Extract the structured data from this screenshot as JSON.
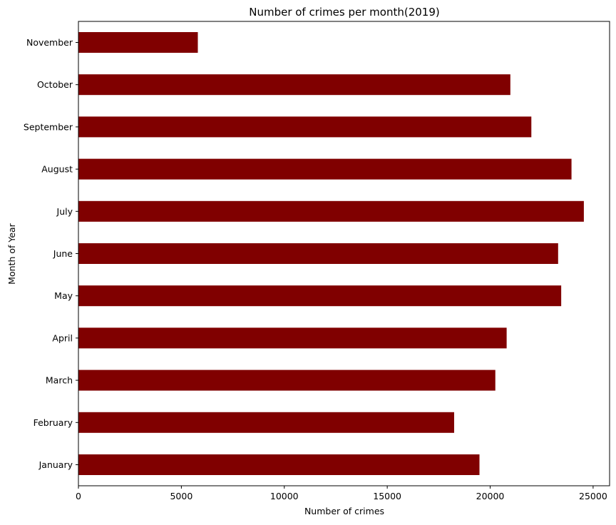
{
  "chart_data": {
    "type": "bar",
    "orientation": "horizontal",
    "title": "Number of crimes per month(2019)",
    "xlabel": "Number of crimes",
    "ylabel": "Month of Year",
    "categories": [
      "January",
      "February",
      "March",
      "April",
      "May",
      "June",
      "July",
      "August",
      "September",
      "October",
      "November"
    ],
    "values": [
      19480,
      18250,
      20250,
      20800,
      23450,
      23300,
      24550,
      23950,
      22000,
      20980,
      5800
    ],
    "xlim": [
      0,
      25800
    ],
    "xticks": [
      0,
      5000,
      10000,
      15000,
      20000,
      25000
    ],
    "xtick_labels": [
      "0",
      "5000",
      "10000",
      "15000",
      "20000",
      "25000"
    ],
    "grid": false,
    "bar_color": "#800000"
  }
}
